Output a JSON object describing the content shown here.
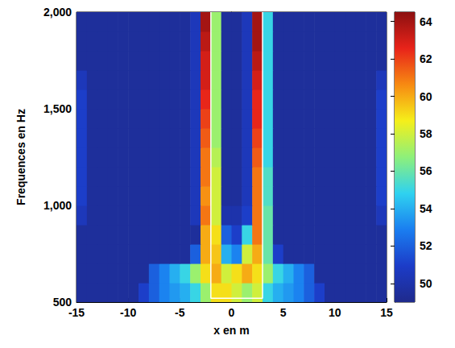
{
  "chart_data": {
    "type": "heatmap",
    "xlabel": "x en m",
    "ylabel": "Frequences en Hz",
    "xlim": [
      -15,
      15
    ],
    "ylim": [
      500,
      2000
    ],
    "xticks": [
      -15,
      -10,
      -5,
      0,
      5,
      10,
      15
    ],
    "yticks": [
      500,
      1000,
      1500,
      2000
    ],
    "x_bins": [
      -15,
      -14,
      -13,
      -12,
      -11,
      -10,
      -9,
      -8,
      -7,
      -6,
      -5,
      -4,
      -3,
      -2,
      -1,
      0,
      1,
      2,
      3,
      4,
      5,
      6,
      7,
      8,
      9,
      10,
      11,
      12,
      13,
      14,
      15
    ],
    "y_bins": [
      500,
      600,
      700,
      800,
      900,
      1000,
      1100,
      1200,
      1300,
      1400,
      1500,
      1600,
      1700,
      1800,
      1900,
      2000
    ],
    "cells": [
      [
        49.5,
        49.5,
        49.5,
        49.5,
        49.5,
        49.5,
        51,
        52,
        53,
        53.5,
        54,
        55,
        57,
        59,
        59,
        58,
        57,
        58,
        55,
        54,
        53.5,
        53,
        52,
        51,
        49.5,
        49.5,
        49.5,
        49.5,
        49.5,
        49.5
      ],
      [
        49.5,
        49.5,
        49.5,
        49.5,
        49.5,
        49.5,
        49.5,
        52,
        53,
        54,
        55,
        57,
        59,
        60,
        58,
        59,
        60,
        59,
        57,
        55,
        54,
        53,
        52,
        49.5,
        49.5,
        49.5,
        49.5,
        49.5,
        49.5,
        49.5
      ],
      [
        49.5,
        49.5,
        49.5,
        49.5,
        49.5,
        49.5,
        49.5,
        49.5,
        49.5,
        49.5,
        49.5,
        52,
        60,
        59.5,
        54,
        53,
        58,
        60,
        56,
        51,
        49.5,
        49.5,
        49.5,
        49.5,
        49.5,
        49.5,
        49.5,
        49.5,
        49.5,
        49.5
      ],
      [
        49.5,
        49.5,
        49.5,
        49.5,
        49.5,
        49.5,
        49.5,
        49.5,
        49.5,
        49.5,
        49.5,
        49.5,
        60,
        59,
        52,
        51,
        55,
        61,
        56,
        49.5,
        49.5,
        49.5,
        49.5,
        49.5,
        49.5,
        49.5,
        49.5,
        49.5,
        49.5,
        49.5
      ],
      [
        50.5,
        49.5,
        49.5,
        49.5,
        49.5,
        49.5,
        49.5,
        49.5,
        49.5,
        49.5,
        49.5,
        50.5,
        61,
        58,
        50,
        50,
        51,
        61,
        56,
        49.5,
        49.5,
        49.5,
        49.5,
        49.5,
        49.5,
        49.5,
        49.5,
        49.5,
        49.5,
        50.5
      ],
      [
        51,
        49.5,
        49.5,
        49.5,
        49.5,
        49.5,
        49.5,
        49.5,
        49.5,
        49.5,
        49.5,
        50.5,
        60.5,
        58,
        49.5,
        49.5,
        50.5,
        61,
        55.5,
        49.5,
        49.5,
        49.5,
        49.5,
        49.5,
        49.5,
        49.5,
        49.5,
        49.5,
        49.5,
        51
      ],
      [
        51,
        49.5,
        49.5,
        49.5,
        49.5,
        49.5,
        49.5,
        49.5,
        49.5,
        49.5,
        49.5,
        50.5,
        61,
        58,
        49.5,
        49.5,
        50.5,
        61,
        55.5,
        49.5,
        49.5,
        49.5,
        49.5,
        49.5,
        49.5,
        49.5,
        49.5,
        49.5,
        49.5,
        51
      ],
      [
        51,
        49.5,
        49.5,
        49.5,
        49.5,
        49.5,
        49.5,
        49.5,
        49.5,
        49.5,
        49.5,
        50.5,
        61,
        57.5,
        49.5,
        49.5,
        50.5,
        61.5,
        55,
        49.5,
        49.5,
        49.5,
        49.5,
        49.5,
        49.5,
        49.5,
        49.5,
        49.5,
        49.5,
        51
      ],
      [
        51,
        49.5,
        49.5,
        49.5,
        49.5,
        49.5,
        49.5,
        49.5,
        49.5,
        49.5,
        49.5,
        50.5,
        61.5,
        57,
        49.5,
        49.5,
        50.5,
        62,
        55,
        49.5,
        49.5,
        49.5,
        49.5,
        49.5,
        49.5,
        49.5,
        49.5,
        49.5,
        49.5,
        51
      ],
      [
        51,
        49.5,
        49.5,
        49.5,
        49.5,
        49.5,
        49.5,
        49.5,
        49.5,
        49.5,
        49.5,
        50.5,
        62,
        57,
        49.5,
        49.5,
        50.5,
        62.5,
        55,
        49.5,
        49.5,
        49.5,
        49.5,
        49.5,
        49.5,
        49.5,
        49.5,
        49.5,
        49.5,
        51
      ],
      [
        51,
        49.5,
        49.5,
        49.5,
        49.5,
        49.5,
        49.5,
        49.5,
        49.5,
        49.5,
        49.5,
        50.5,
        62.5,
        57,
        49.5,
        49.5,
        50.5,
        62.5,
        55,
        49.5,
        49.5,
        49.5,
        49.5,
        49.5,
        49.5,
        49.5,
        49.5,
        49.5,
        49.5,
        51
      ],
      [
        50.5,
        49.5,
        49.5,
        49.5,
        49.5,
        49.5,
        49.5,
        49.5,
        49.5,
        49.5,
        49.5,
        50.5,
        63,
        57,
        49.5,
        49.5,
        50.5,
        63,
        55,
        49.5,
        49.5,
        49.5,
        49.5,
        49.5,
        49.5,
        49.5,
        49.5,
        49.5,
        49.5,
        50.5
      ],
      [
        49.5,
        49.5,
        49.5,
        49.5,
        49.5,
        49.5,
        49.5,
        49.5,
        49.5,
        49.5,
        49.5,
        50.5,
        63,
        57,
        49.5,
        49.5,
        50.5,
        63.5,
        55,
        49.5,
        49.5,
        49.5,
        49.5,
        49.5,
        49.5,
        49.5,
        49.5,
        49.5,
        49.5,
        49.5
      ],
      [
        49.5,
        49.5,
        49.5,
        49.5,
        49.5,
        49.5,
        49.5,
        49.5,
        49.5,
        49.5,
        49.5,
        50.5,
        63.5,
        57,
        49.5,
        49.5,
        50.5,
        64,
        55,
        49.5,
        49.5,
        49.5,
        49.5,
        49.5,
        49.5,
        49.5,
        49.5,
        49.5,
        49.5,
        49.5
      ],
      [
        49.5,
        49.5,
        49.5,
        49.5,
        49.5,
        49.5,
        49.5,
        49.5,
        49.5,
        49.5,
        49.5,
        50.5,
        64,
        57,
        49.5,
        49.5,
        50.5,
        64,
        55,
        49.5,
        49.5,
        49.5,
        49.5,
        49.5,
        49.5,
        49.5,
        49.5,
        49.5,
        49.5,
        49.5
      ]
    ],
    "colorbar": {
      "range": [
        49,
        64.5
      ],
      "ticks": [
        50,
        52,
        54,
        56,
        58,
        60,
        62,
        64
      ]
    },
    "lines": [
      {
        "x": [
          -2,
          -2,
          3,
          3
        ],
        "y": [
          2000,
          520,
          520,
          2000
        ],
        "color": "#ffffff"
      }
    ]
  }
}
